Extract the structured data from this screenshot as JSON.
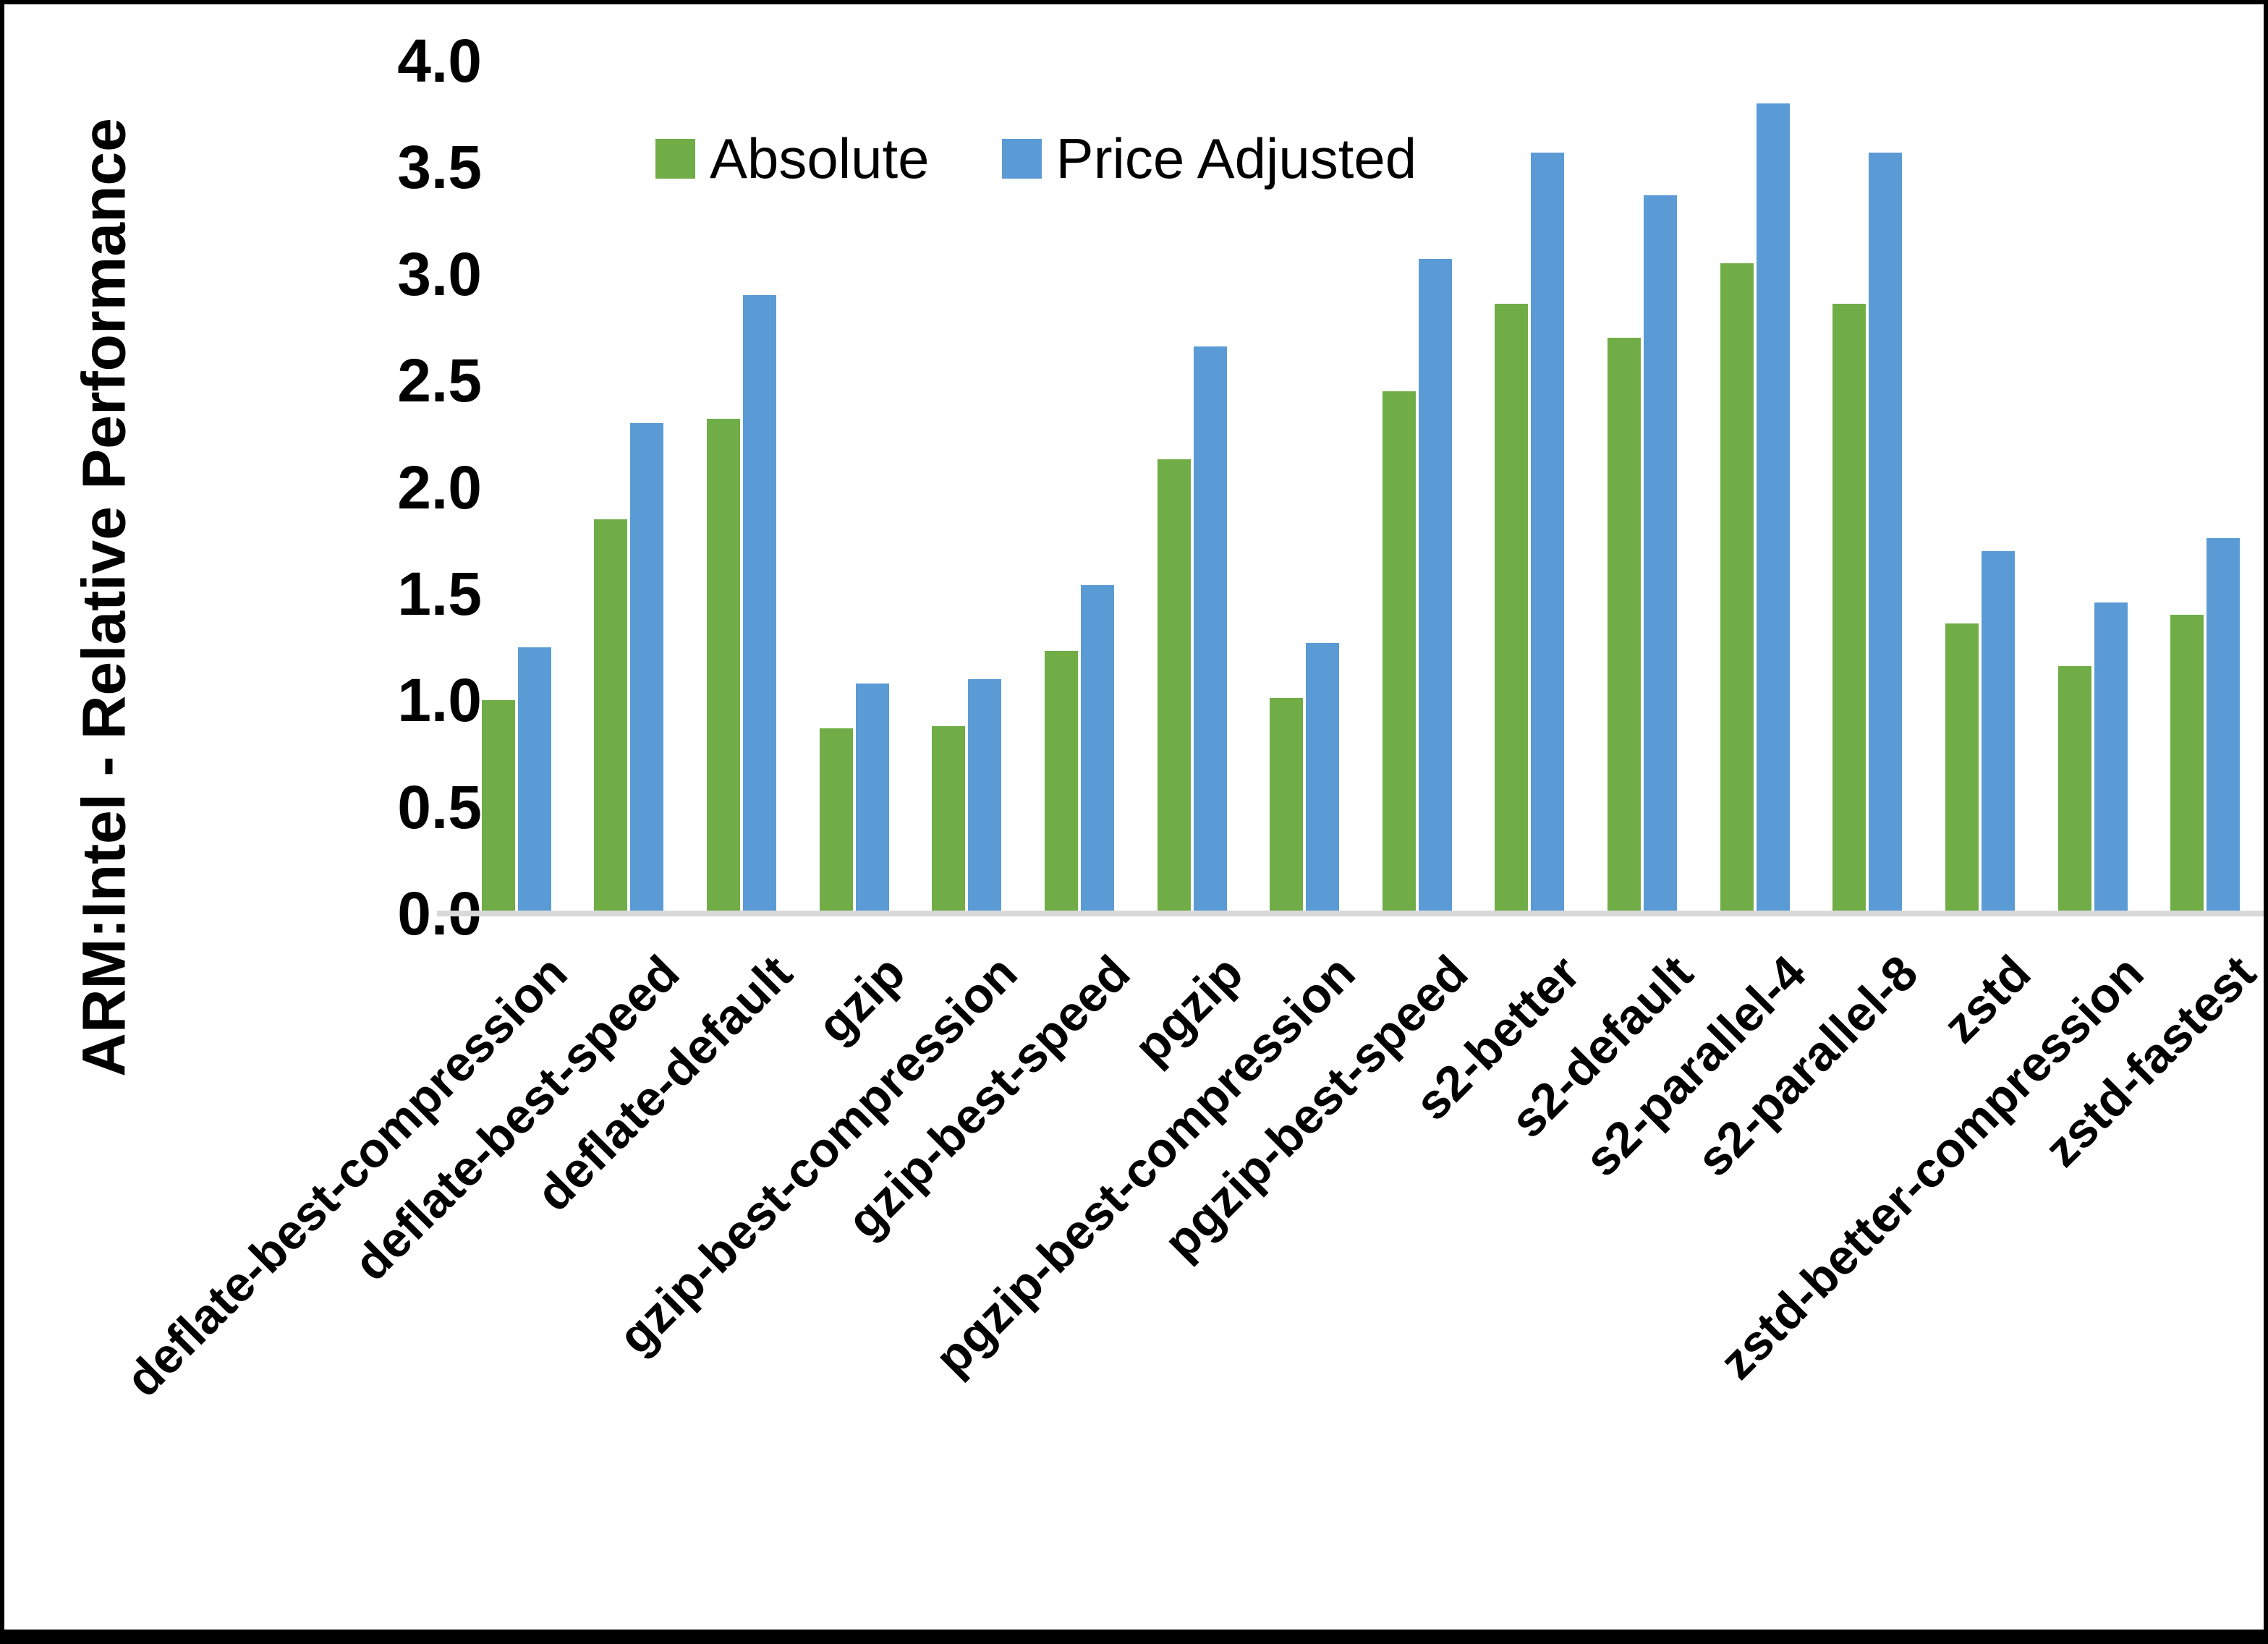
{
  "figure": {
    "background": "#FFFFFF",
    "border_color": "#000000"
  },
  "y_axis": {
    "title": "ARM:Intel - Relative Performance",
    "tick_labels": [
      "0.0",
      "0.5",
      "1.0",
      "1.5",
      "2.0",
      "2.5",
      "3.0",
      "3.5",
      "4.0"
    ]
  },
  "legend": {
    "items": [
      {
        "label": "Absolute",
        "color": "#70AD47"
      },
      {
        "label": "Price Adjusted",
        "color": "#5B9BD5"
      }
    ]
  },
  "colors": {
    "absolute_green": "#70AD47",
    "price_adjusted_blue": "#5B9BD5",
    "axis_line_gray": "#D9D9D9"
  },
  "chart_data": {
    "type": "bar",
    "title": "",
    "xlabel": "",
    "ylabel": "ARM:Intel - Relative Performance",
    "ylim": [
      0,
      4
    ],
    "ytick_step": 0.5,
    "grid": false,
    "legend_position": "top-center",
    "categories": [
      "deflate-best-compression",
      "deflate-best-speed",
      "deflate-default",
      "gzip",
      "gzip-best-compression",
      "gzip-best-speed",
      "pgzip",
      "pgzip-best-compression",
      "pgzip-best-speed",
      "s2-better",
      "s2-default",
      "s2-parallel-4",
      "s2-parallel-8",
      "zstd",
      "zstd-better-compression",
      "zstd-fastest"
    ],
    "series": [
      {
        "name": "Absolute",
        "color": "#70AD47",
        "values": [
          1.0,
          1.85,
          2.32,
          0.87,
          0.88,
          1.23,
          2.13,
          1.01,
          2.45,
          2.86,
          2.7,
          3.05,
          2.86,
          1.36,
          1.16,
          1.4
        ]
      },
      {
        "name": "Price Adjusted",
        "color": "#5B9BD5",
        "values": [
          1.25,
          2.3,
          2.9,
          1.08,
          1.1,
          1.54,
          2.66,
          1.27,
          3.07,
          3.57,
          3.37,
          3.8,
          3.57,
          1.7,
          1.46,
          1.76
        ]
      }
    ]
  }
}
